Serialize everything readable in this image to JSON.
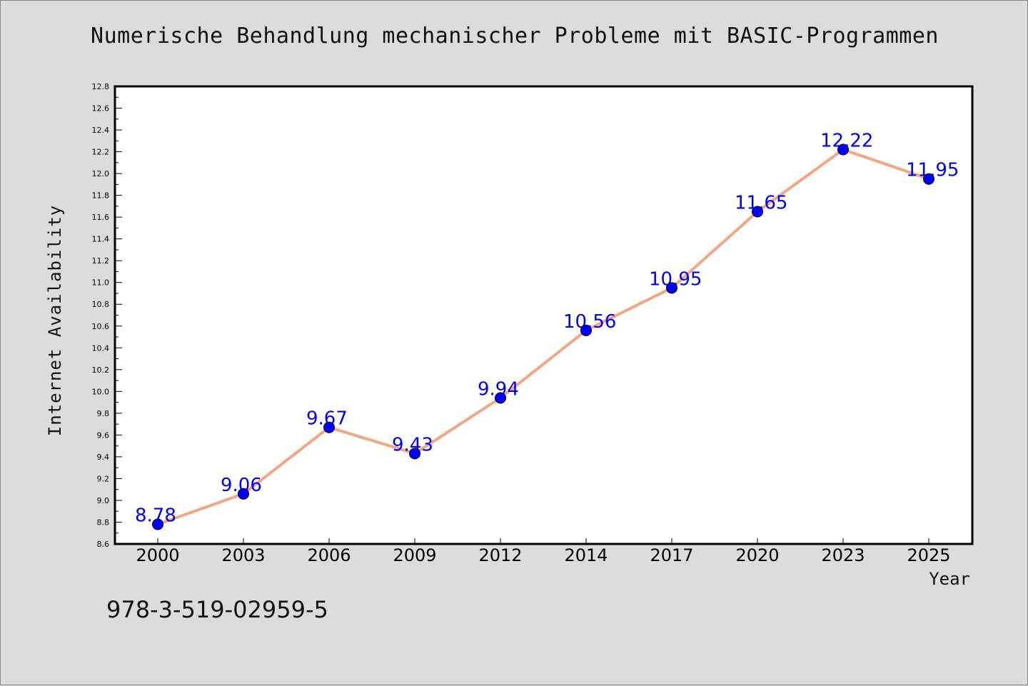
{
  "chart_data": {
    "type": "line",
    "title": "Numerische Behandlung mechanischer Probleme mit BASIC-Programmen",
    "xlabel": "Year",
    "ylabel": "Internet Availability",
    "categories": [
      "2000",
      "2003",
      "2006",
      "2009",
      "2012",
      "2014",
      "2017",
      "2020",
      "2023",
      "2025"
    ],
    "values": [
      8.78,
      9.06,
      9.67,
      9.43,
      9.94,
      10.56,
      10.95,
      11.65,
      12.22,
      11.95
    ],
    "data_labels": [
      "8.78",
      "9.06",
      "9.67",
      "9.43",
      "9.94",
      "10.56",
      "10.95",
      "11.65",
      "12.22",
      "11.95"
    ],
    "ylim": [
      8.6,
      12.8
    ],
    "yticks": [
      "8.6",
      "8.8",
      "9.0",
      "9.2",
      "9.4",
      "9.6",
      "9.8",
      "10.0",
      "10.2",
      "10.4",
      "10.6",
      "10.8",
      "11.0",
      "11.2",
      "11.4",
      "11.6",
      "11.8",
      "12.0",
      "12.2",
      "12.4",
      "12.6",
      "12.8"
    ],
    "grid": false,
    "colors": {
      "line": "#f4a582",
      "marker": "#0000ff",
      "label": "#0000ff"
    }
  },
  "footer": {
    "isbn": "978-3-519-02959-5"
  }
}
